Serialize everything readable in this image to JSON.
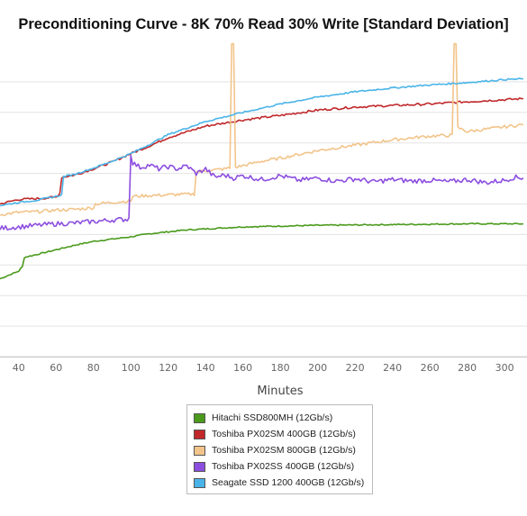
{
  "title": "Preconditioning Curve - 8K 70% Read 30% Write [Standard Deviation]",
  "chart_data": {
    "type": "line",
    "title": "Preconditioning Curve - 8K 70% Read 30% Write [Standard Deviation]",
    "xlabel": "Minutes",
    "ylabel": "",
    "xlim": [
      30,
      312
    ],
    "ylim": [
      -8,
      12
    ],
    "x_ticks": [
      "40",
      "60",
      "80",
      "100",
      "120",
      "140",
      "160",
      "180",
      "200",
      "220",
      "240",
      "260",
      "280",
      "300"
    ],
    "grid": true,
    "legend_position": "bottom",
    "series": [
      {
        "name": "Hitachi SSD800MH (12Gb/s)",
        "color": "#4a9a1c",
        "x": [
          30,
          36,
          40,
          42,
          43,
          50,
          60,
          70,
          80,
          90,
          100,
          110,
          130,
          160,
          200,
          240,
          280,
          310
        ],
        "y": [
          -2.9,
          -2.6,
          -2.4,
          -2.1,
          -1.5,
          -1.3,
          -1.0,
          -0.7,
          -0.45,
          -0.3,
          -0.15,
          0.05,
          0.3,
          0.5,
          0.6,
          0.65,
          0.7,
          0.7
        ]
      },
      {
        "name": "Toshiba PX02SM 400GB (12Gb/s)",
        "color": "#c0282a",
        "x": [
          30,
          40,
          50,
          60,
          62,
          63,
          70,
          80,
          90,
          100,
          110,
          120,
          140,
          160,
          180,
          200,
          220,
          240,
          260,
          280,
          310
        ],
        "y": [
          2.0,
          2.3,
          2.35,
          2.45,
          2.7,
          3.75,
          3.9,
          4.3,
          4.75,
          5.3,
          5.8,
          6.35,
          7.1,
          7.5,
          7.8,
          8.15,
          8.35,
          8.45,
          8.55,
          8.7,
          8.9
        ]
      },
      {
        "name": "Toshiba PX02SM 800GB (12Gb/s)",
        "color": "#f2c48a",
        "x": [
          30,
          40,
          50,
          60,
          70,
          80,
          81,
          90,
          100,
          101,
          110,
          120,
          134,
          135,
          150,
          153,
          154,
          155,
          156,
          170,
          180,
          200,
          220,
          240,
          260,
          272,
          273,
          274,
          275,
          280,
          300,
          310
        ],
        "y": [
          1.3,
          1.45,
          1.5,
          1.6,
          1.65,
          1.75,
          2.0,
          2.1,
          2.2,
          2.5,
          2.55,
          2.6,
          2.65,
          4.1,
          4.3,
          4.35,
          12.5,
          12.5,
          4.4,
          4.8,
          5.0,
          5.5,
          5.85,
          6.2,
          6.45,
          6.5,
          12.5,
          12.5,
          7.0,
          6.75,
          7.05,
          7.2
        ]
      },
      {
        "name": "Toshiba PX02SS 400GB (12Gb/s)",
        "color": "#8c4ee0",
        "x": [
          30,
          40,
          50,
          60,
          70,
          80,
          90,
          98,
          99,
          100,
          101,
          105,
          110,
          115,
          120,
          125,
          130,
          135,
          140,
          145,
          150,
          155,
          160,
          170,
          180,
          190,
          200,
          210,
          220,
          230,
          240,
          250,
          260,
          270,
          280,
          290,
          300,
          305,
          310
        ],
        "y": [
          0.4,
          0.5,
          0.6,
          0.7,
          0.75,
          0.85,
          0.95,
          1.0,
          1.05,
          5.3,
          4.7,
          4.4,
          4.55,
          4.3,
          4.45,
          4.3,
          4.5,
          4.0,
          4.3,
          3.75,
          3.9,
          3.7,
          3.85,
          3.6,
          3.85,
          3.55,
          3.7,
          3.5,
          3.65,
          3.45,
          3.6,
          3.5,
          3.55,
          3.45,
          3.6,
          3.4,
          3.55,
          3.75,
          3.7
        ]
      },
      {
        "name": "Seagate SSD 1200 400GB (12Gb/s)",
        "color": "#4ab4e8",
        "x": [
          30,
          40,
          50,
          60,
          63,
          64,
          70,
          80,
          90,
          100,
          110,
          120,
          140,
          160,
          180,
          200,
          220,
          240,
          260,
          280,
          300,
          310
        ],
        "y": [
          1.9,
          2.1,
          2.25,
          2.5,
          2.6,
          3.8,
          3.95,
          4.35,
          4.8,
          5.3,
          5.9,
          6.55,
          7.4,
          8.0,
          8.55,
          9.0,
          9.35,
          9.6,
          9.8,
          9.95,
          10.15,
          10.2
        ]
      }
    ]
  }
}
